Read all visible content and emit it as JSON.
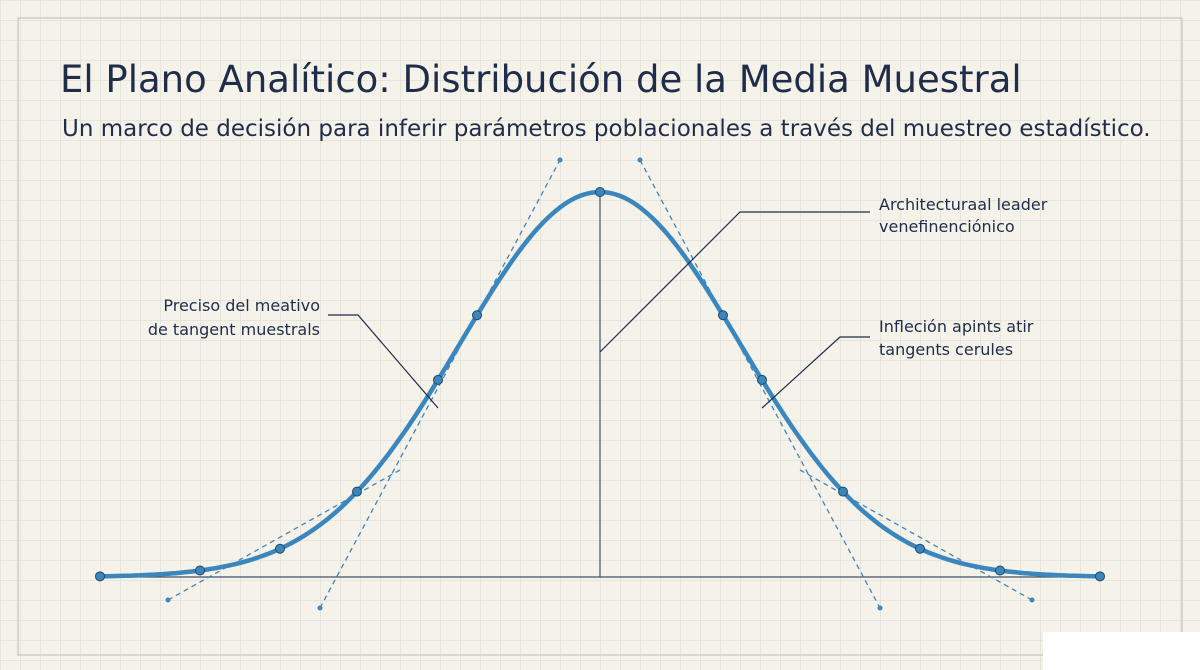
{
  "header": {
    "title": "El Plano Analítico: Distribución de la Media Muestral",
    "subtitle": "Un marco de decisión para inferir parámetros poblacionales a través del muestreo estadístico."
  },
  "annotations": [
    {
      "lines": [
        "Preciso del meativo",
        "de tangent muestrals"
      ]
    },
    {
      "lines": [
        "Architecturaal leader",
        "venefinenciónico"
      ]
    },
    {
      "lines": [
        "Infleción apints atir",
        "tangents cerules"
      ]
    }
  ]
}
